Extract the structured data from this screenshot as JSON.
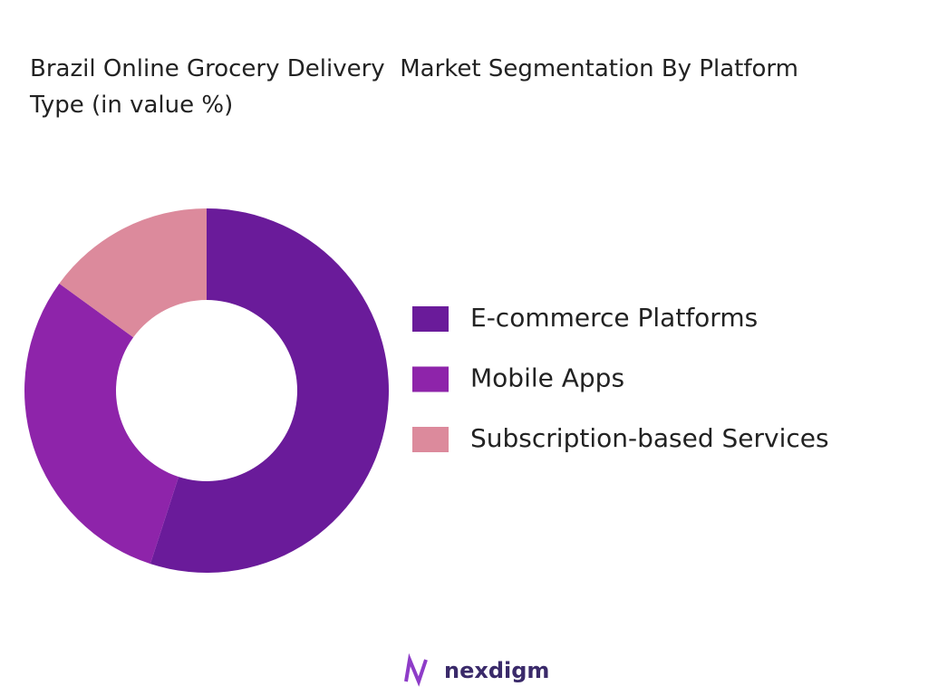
{
  "chart_data": {
    "type": "donut",
    "title": "Brazil Online Grocery Delivery  Market Segmentation By Platform Type (in value %)",
    "categories": [
      "E-commerce Platforms",
      "Mobile Apps",
      "Subscription-based Services"
    ],
    "values": [
      55,
      30,
      15
    ],
    "colors": [
      "#6a1b9a",
      "#8e24aa",
      "#dc8a9c"
    ],
    "legend": "right"
  },
  "brand": "nexdigm"
}
